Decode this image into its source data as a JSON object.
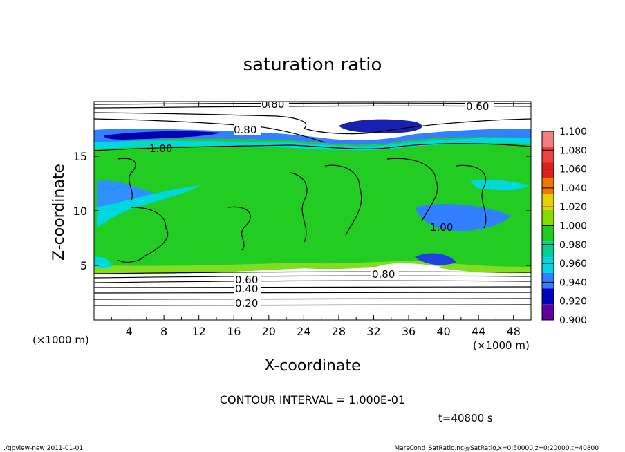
{
  "chart_data": {
    "type": "heatmap",
    "title": "saturation ratio",
    "xlabel": "X-coordinate",
    "ylabel": "Z-coordinate",
    "x_unit": "(×1000 m)",
    "y_unit": "(×1000 m)",
    "xlim": [
      0,
      50
    ],
    "ylim": [
      0,
      20
    ],
    "x_ticks": [
      "4",
      "8",
      "12",
      "16",
      "20",
      "24",
      "28",
      "32",
      "36",
      "40",
      "44",
      "48"
    ],
    "y_ticks": [
      "5",
      "10",
      "15"
    ],
    "colorbar": {
      "levels": [
        "1.100",
        "1.080",
        "1.060",
        "1.040",
        "1.020",
        "1.000",
        "0.980",
        "0.960",
        "0.940",
        "0.920",
        "0.900"
      ],
      "colors": [
        "#f08080",
        "#f04040",
        "#e02020",
        "#f07800",
        "#e8d000",
        "#88dd00",
        "#20cc20",
        "#00d090",
        "#00d8e0",
        "#3080ff",
        "#0000c0",
        "#6000a0"
      ]
    },
    "contour_labels": [
      "0.80",
      "0.60",
      "0.80",
      "1.00",
      "1.00",
      "0.80",
      "0.60",
      "0.40",
      "0.20"
    ],
    "contour_interval_text": "CONTOUR INTERVAL = 1.000E-01",
    "time_text": "t=40800 s",
    "grid": false,
    "legend": "right"
  },
  "footer": {
    "left": "./gpview-new  2011-01-01",
    "right": "MarsCond_SatRatio.nc@SatRatio,x=0:50000,z=0:20000,t=40800"
  }
}
